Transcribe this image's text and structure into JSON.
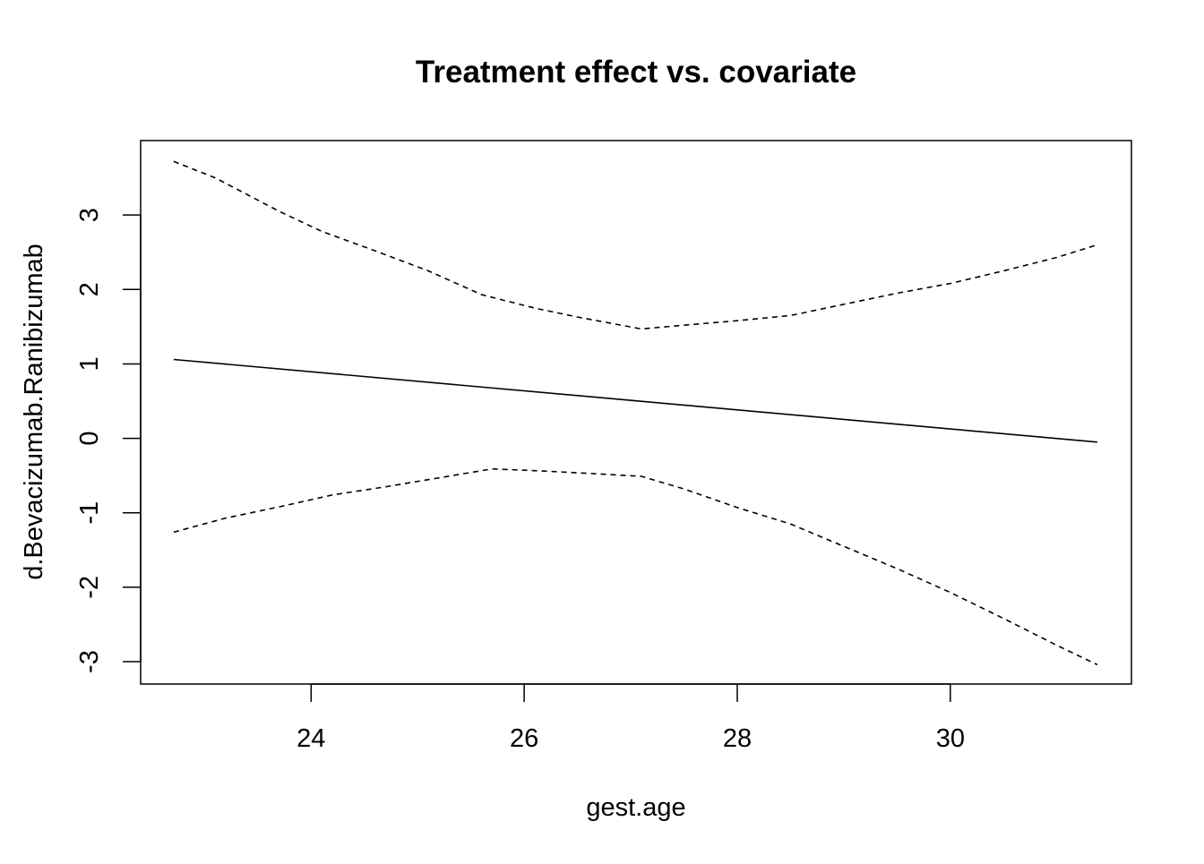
{
  "chart_data": {
    "type": "line",
    "title": "Treatment effect vs. covariate",
    "xlabel": "gest.age",
    "ylabel": "d.Bevacizumab.Ranibizumab",
    "xlim": [
      22.4,
      31.7
    ],
    "ylim": [
      -3.3,
      4.0
    ],
    "xticks": [
      24,
      26,
      28,
      30
    ],
    "yticks": [
      -3,
      -2,
      -1,
      0,
      1,
      2,
      3
    ],
    "grid": false,
    "legend": "none",
    "series": [
      {
        "style": "solid",
        "x": [
          22.71,
          31.38
        ],
        "y": [
          1.06,
          -0.05
        ]
      },
      {
        "style": "dashed",
        "x": [
          22.71,
          23.1,
          23.7,
          24.1,
          24.6,
          25.1,
          25.6,
          26.1,
          26.5,
          27.1,
          27.5,
          28.0,
          28.5,
          29.0,
          29.5,
          30.0,
          30.5,
          31.0,
          31.38
        ],
        "y": [
          3.72,
          3.5,
          3.05,
          2.78,
          2.52,
          2.25,
          1.93,
          1.75,
          1.63,
          1.47,
          1.52,
          1.58,
          1.65,
          1.8,
          1.95,
          2.08,
          2.25,
          2.43,
          2.6
        ]
      },
      {
        "style": "dashed",
        "x": [
          22.71,
          23.2,
          23.7,
          24.2,
          24.7,
          25.2,
          25.7,
          26.2,
          26.6,
          27.1,
          27.5,
          28.0,
          28.5,
          29.0,
          29.5,
          30.0,
          30.5,
          31.0,
          31.38
        ],
        "y": [
          -1.26,
          -1.07,
          -0.92,
          -0.76,
          -0.65,
          -0.53,
          -0.41,
          -0.44,
          -0.47,
          -0.51,
          -0.68,
          -0.93,
          -1.15,
          -1.45,
          -1.75,
          -2.07,
          -2.42,
          -2.78,
          -3.04
        ]
      }
    ]
  }
}
